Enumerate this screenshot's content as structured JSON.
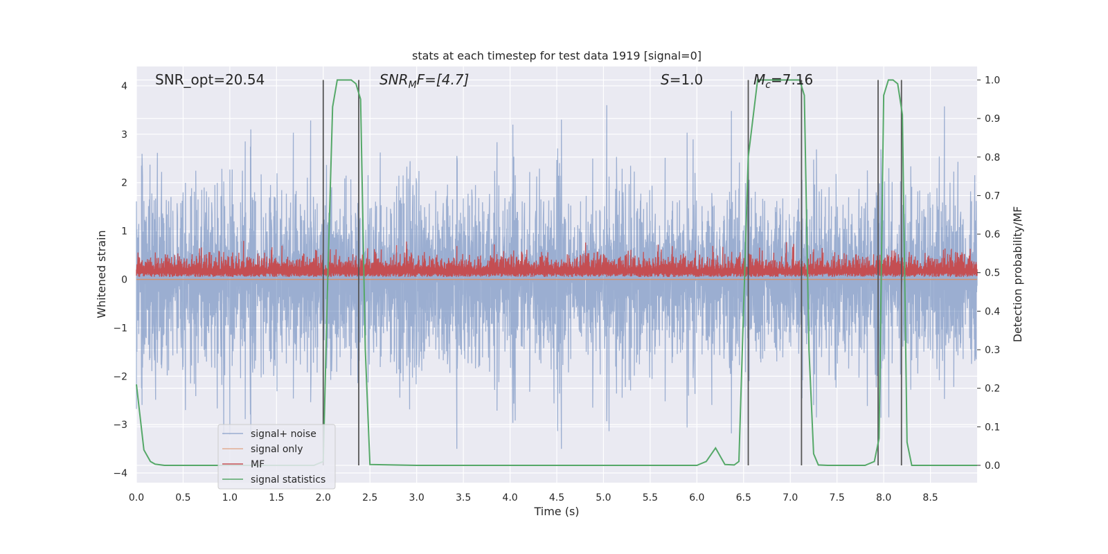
{
  "chart_data": {
    "type": "line",
    "title": "stats at each timestep for test data 1919 [signal=0]",
    "xlabel": "Time (s)",
    "ylabel": "Whitened strain",
    "y2label": "Detection probability/MF",
    "xlim": [
      0.0,
      9.0
    ],
    "ylim": [
      -4.2,
      4.4
    ],
    "y2lim": [
      -0.045,
      1.035
    ],
    "xticks": [
      "0.0",
      "0.5",
      "1.0",
      "1.5",
      "2.0",
      "2.5",
      "3.0",
      "3.5",
      "4.0",
      "4.5",
      "5.0",
      "5.5",
      "6.0",
      "6.5",
      "7.0",
      "7.5",
      "8.0",
      "8.5"
    ],
    "yticks": [
      "4",
      "3",
      "2",
      "1",
      "0",
      "−1",
      "−2",
      "−3",
      "−4"
    ],
    "y2ticks": [
      "1.0",
      "0.9",
      "0.8",
      "0.7",
      "0.6",
      "0.5",
      "0.4",
      "0.3",
      "0.2",
      "0.1",
      "0.0"
    ],
    "annotations": {
      "snr_opt": "SNR_opt=20.54",
      "snr_mf_base": "SNR",
      "snr_mf_sub": "M",
      "snr_mf_rest": "F=[4.7]",
      "s_label": "S",
      "s_rest": "=1.0",
      "mc_base": "M",
      "mc_sub": "c",
      "mc_rest": "=7.16"
    },
    "vlines": [
      2.0,
      2.38,
      6.55,
      7.12,
      7.94,
      8.19
    ],
    "series": [
      {
        "name": "signal+ noise",
        "color": "#4c72b0",
        "envelope_max": 3.6,
        "envelope_min": -3.5,
        "axis": "left"
      },
      {
        "name": "signal only",
        "color": "#dd8452",
        "values_const": 0.0,
        "axis": "left"
      },
      {
        "name": "MF",
        "color": "#c44e52",
        "typical_range": [
          0.0,
          0.9
        ],
        "axis": "left"
      },
      {
        "name": "signal statistics",
        "color": "#55a868",
        "axis": "right",
        "x": [
          0.0,
          0.08,
          0.15,
          0.2,
          0.3,
          1.0,
          1.9,
          2.0,
          2.05,
          2.1,
          2.15,
          2.3,
          2.35,
          2.4,
          2.45,
          2.5,
          3.0,
          4.0,
          5.0,
          6.0,
          6.1,
          6.2,
          6.3,
          6.4,
          6.45,
          6.55,
          6.65,
          6.7,
          7.0,
          7.1,
          7.15,
          7.2,
          7.25,
          7.3,
          7.4,
          7.8,
          7.9,
          7.95,
          8.0,
          8.05,
          8.1,
          8.15,
          8.2,
          8.25,
          8.3,
          9.0
        ],
        "y": [
          0.21,
          0.04,
          0.01,
          0.003,
          0.0,
          0.0,
          0.0,
          0.01,
          0.5,
          0.93,
          1.0,
          1.0,
          0.99,
          0.95,
          0.3,
          0.002,
          0.0,
          0.0,
          0.0,
          0.0,
          0.01,
          0.045,
          0.002,
          0.001,
          0.01,
          0.8,
          1.0,
          1.0,
          1.0,
          1.0,
          0.96,
          0.3,
          0.03,
          0.001,
          0.0,
          0.0,
          0.01,
          0.07,
          0.96,
          1.0,
          1.0,
          0.99,
          0.91,
          0.06,
          0.0,
          0.0
        ]
      }
    ],
    "legend_position": "lower-left",
    "grid": true,
    "colors": {
      "plot_bg": "#eaeaf2",
      "grid": "#ffffff",
      "vline": "#555555"
    }
  }
}
